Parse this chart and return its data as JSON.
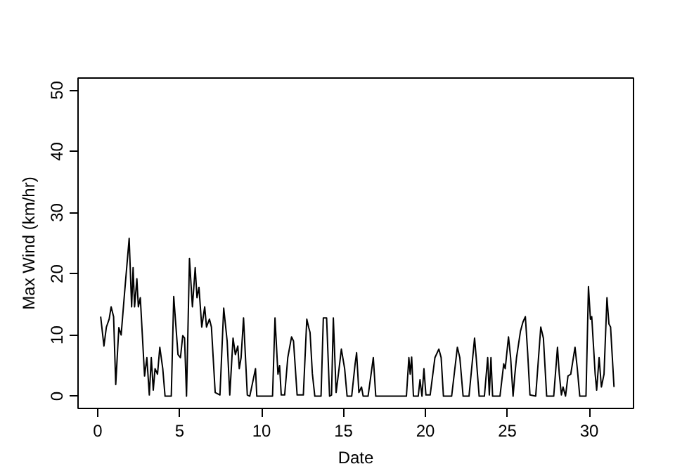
{
  "chart_data": {
    "type": "line",
    "xlabel": "Date",
    "ylabel": "Max Wind (km/hr)",
    "xlim": [
      -1.2,
      32.7
    ],
    "ylim": [
      -2,
      52
    ],
    "xticks": [
      0,
      5,
      10,
      15,
      20,
      25,
      30
    ],
    "yticks": [
      0,
      10,
      20,
      30,
      40,
      50
    ],
    "grid": false,
    "series": [
      {
        "color": "#000000",
        "x": [
          0.18,
          0.38,
          0.53,
          0.7,
          0.82,
          0.97,
          1.1,
          1.29,
          1.43,
          1.63,
          1.92,
          2.07,
          2.16,
          2.25,
          2.39,
          2.48,
          2.6,
          2.86,
          3.0,
          3.15,
          3.27,
          3.39,
          3.5,
          3.65,
          3.79,
          3.97,
          4.11,
          4.49,
          4.64,
          4.9,
          5.05,
          5.19,
          5.3,
          5.42,
          5.6,
          5.78,
          5.95,
          6.06,
          6.18,
          6.35,
          6.53,
          6.64,
          6.82,
          6.94,
          7.17,
          7.46,
          7.69,
          7.9,
          8.06,
          8.26,
          8.4,
          8.55,
          8.64,
          8.75,
          8.9,
          9.13,
          9.28,
          9.63,
          9.71,
          10.67,
          10.82,
          11.0,
          11.1,
          11.2,
          11.41,
          11.6,
          11.83,
          11.95,
          12.17,
          12.55,
          12.76,
          12.87,
          12.96,
          13.1,
          13.25,
          13.63,
          13.77,
          13.97,
          14.15,
          14.27,
          14.38,
          14.55,
          14.73,
          14.87,
          15.07,
          15.22,
          15.5,
          15.71,
          15.8,
          15.94,
          16.1,
          16.2,
          16.5,
          16.82,
          16.97,
          18.84,
          18.99,
          19.07,
          19.16,
          19.27,
          19.56,
          19.67,
          19.79,
          19.91,
          20.03,
          20.29,
          20.58,
          20.82,
          20.96,
          21.1,
          21.6,
          21.95,
          22.1,
          22.3,
          22.66,
          23.0,
          23.1,
          23.28,
          23.6,
          23.8,
          23.9,
          24.0,
          24.1,
          24.55,
          24.78,
          24.87,
          25.07,
          25.2,
          25.35,
          25.45,
          25.56,
          25.8,
          25.95,
          26.1,
          26.24,
          26.38,
          26.73,
          27.04,
          27.2,
          27.4,
          27.83,
          28.06,
          28.17,
          28.3,
          28.4,
          28.55,
          28.7,
          28.87,
          29.13,
          29.27,
          29.42,
          29.8,
          29.95,
          30.07,
          30.15,
          30.36,
          30.45,
          30.6,
          30.74,
          30.9,
          31.08,
          31.2,
          31.3,
          31.51
        ],
        "values": [
          13,
          8.2,
          11.3,
          12.6,
          14.6,
          13,
          1.9,
          11.2,
          10,
          16.6,
          25.8,
          14.6,
          21,
          14.6,
          19.2,
          14.6,
          16.1,
          3.3,
          6.3,
          0.2,
          6.3,
          1,
          4.5,
          3.6,
          8,
          4.5,
          0,
          0,
          16.3,
          6.8,
          6.3,
          9.9,
          9.5,
          0,
          22.5,
          14.6,
          21,
          16.1,
          17.8,
          11.3,
          14.6,
          11.3,
          12.6,
          11.3,
          0.6,
          0.2,
          14.4,
          9,
          0.2,
          9.5,
          6.8,
          8.2,
          4.5,
          6.3,
          12.8,
          0.2,
          0,
          4.5,
          0,
          0,
          12.8,
          3.6,
          5,
          0.2,
          0.2,
          6.3,
          9.7,
          9,
          0.2,
          0.2,
          12.6,
          11.3,
          10.4,
          3.7,
          0,
          0,
          12.8,
          12.8,
          0,
          0.2,
          12.8,
          0.6,
          4.5,
          7.7,
          4.5,
          0,
          0,
          5.3,
          7.1,
          0.6,
          1.5,
          0,
          0,
          6.3,
          0,
          0,
          6.3,
          3.6,
          6.4,
          0,
          0,
          2.7,
          0,
          4.5,
          0.2,
          0.2,
          6.3,
          7.7,
          6.3,
          0,
          0,
          8,
          6.3,
          0,
          0,
          9.5,
          6.3,
          0,
          0,
          6.3,
          0.2,
          6.3,
          0,
          0,
          5.3,
          4.5,
          9.7,
          6.3,
          0,
          3.3,
          6.3,
          10.6,
          12.1,
          13,
          7.1,
          0.2,
          0,
          11.3,
          9.5,
          0,
          0,
          8,
          3.6,
          0.2,
          1.5,
          0,
          3.3,
          3.6,
          8,
          4.5,
          0,
          0,
          17.9,
          12.6,
          13,
          3.6,
          1,
          6.3,
          1.5,
          3.6,
          16.1,
          11.8,
          11.3,
          1.5
        ]
      }
    ]
  }
}
